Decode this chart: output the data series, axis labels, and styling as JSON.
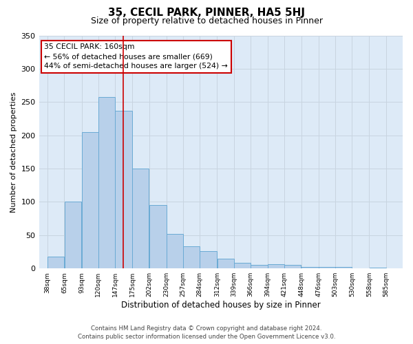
{
  "title": "35, CECIL PARK, PINNER, HA5 5HJ",
  "subtitle": "Size of property relative to detached houses in Pinner",
  "xlabel": "Distribution of detached houses by size in Pinner",
  "ylabel": "Number of detached properties",
  "bar_left_edges": [
    38,
    65,
    93,
    120,
    147,
    175,
    202,
    230,
    257,
    284,
    312,
    339,
    366,
    394,
    421,
    448,
    476,
    503,
    530,
    558
  ],
  "bar_heights": [
    18,
    100,
    205,
    258,
    237,
    150,
    95,
    52,
    33,
    26,
    15,
    8,
    5,
    6,
    5,
    2,
    2,
    2,
    0,
    1
  ],
  "bar_widths": [
    27,
    28,
    27,
    27,
    28,
    27,
    28,
    27,
    27,
    28,
    27,
    27,
    28,
    27,
    27,
    28,
    27,
    27,
    28,
    27
  ],
  "bar_color": "#b8d0ea",
  "bar_edge_color": "#6aaad4",
  "axes_bg_color": "#ddeaf7",
  "fig_bg_color": "#ffffff",
  "red_line_x": 160,
  "annotation_title": "35 CECIL PARK: 160sqm",
  "annotation_line1": "← 56% of detached houses are smaller (669)",
  "annotation_line2": "44% of semi-detached houses are larger (524) →",
  "annotation_box_color": "#ffffff",
  "annotation_border_color": "#cc0000",
  "red_line_color": "#cc0000",
  "ylim": [
    0,
    350
  ],
  "yticks": [
    0,
    50,
    100,
    150,
    200,
    250,
    300,
    350
  ],
  "xtick_labels": [
    "38sqm",
    "65sqm",
    "93sqm",
    "120sqm",
    "147sqm",
    "175sqm",
    "202sqm",
    "230sqm",
    "257sqm",
    "284sqm",
    "312sqm",
    "339sqm",
    "366sqm",
    "394sqm",
    "421sqm",
    "448sqm",
    "476sqm",
    "503sqm",
    "530sqm",
    "558sqm",
    "585sqm"
  ],
  "xtick_positions": [
    38,
    65,
    93,
    120,
    147,
    175,
    202,
    230,
    257,
    284,
    312,
    339,
    366,
    394,
    421,
    448,
    476,
    503,
    530,
    558,
    585
  ],
  "grid_color": "#c8d4e0",
  "footer_line1": "Contains HM Land Registry data © Crown copyright and database right 2024.",
  "footer_line2": "Contains public sector information licensed under the Open Government Licence v3.0."
}
